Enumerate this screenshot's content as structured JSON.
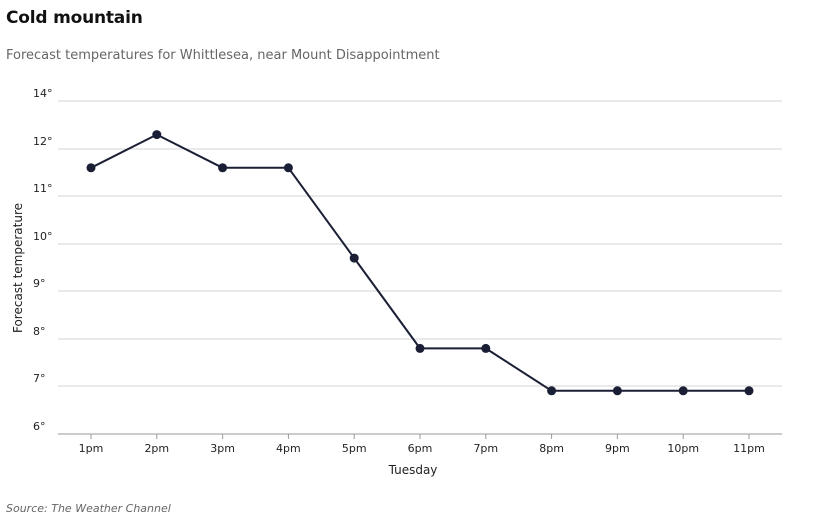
{
  "title": "Cold mountain",
  "subtitle": "Forecast temperatures for Whittlesea, near Mount Disappointment",
  "source_prefix": "Source:",
  "source_name": "The Weather Channel",
  "chart_data": {
    "type": "line",
    "title": "Cold mountain",
    "subtitle": "Forecast temperatures for Whittlesea, near Mount Disappointment",
    "xlabel": "Tuesday",
    "ylabel": "Forecast temperature",
    "categories": [
      "1pm",
      "2pm",
      "3pm",
      "4pm",
      "5pm",
      "6pm",
      "7pm",
      "8pm",
      "9pm",
      "10pm",
      "11pm"
    ],
    "series": [
      {
        "values": [
          11.6,
          12.6,
          11.6,
          11.6,
          9.7,
          7.8,
          7.8,
          6.9,
          6.9,
          6.9,
          6.9
        ]
      }
    ],
    "ylim": [
      6,
      14
    ],
    "y_tick_labels": [
      "14°",
      "12°",
      "11°",
      "10°",
      "9°",
      "8°",
      "7°",
      "6°"
    ],
    "grid": true,
    "colors": {
      "line": "#1b1f36",
      "gridline": "#d4d4d4",
      "axis": "#999999"
    }
  }
}
